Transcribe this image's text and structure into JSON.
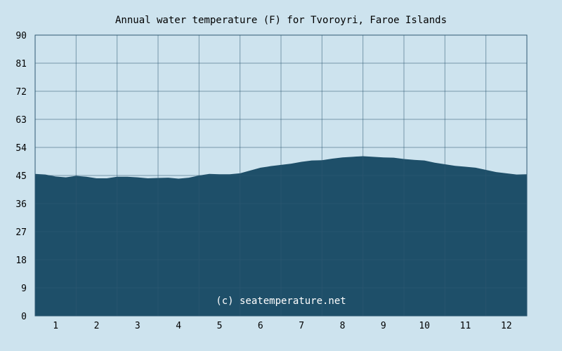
{
  "chart_data": {
    "type": "area",
    "title": "Annual water temperature (F) for Tvoroyri, Faroe Islands",
    "xlabel": "",
    "ylabel": "",
    "ylim": [
      0,
      90
    ],
    "xlim": [
      0.5,
      12.5
    ],
    "yticks": [
      "0",
      "9",
      "18",
      "27",
      "36",
      "45",
      "54",
      "63",
      "72",
      "81",
      "90"
    ],
    "xticks": [
      "1",
      "2",
      "3",
      "4",
      "5",
      "6",
      "7",
      "8",
      "9",
      "10",
      "11",
      "12"
    ],
    "x": [
      0.5,
      0.75,
      1.0,
      1.25,
      1.5,
      1.75,
      2.0,
      2.25,
      2.5,
      2.75,
      3.0,
      3.25,
      3.5,
      3.75,
      4.0,
      4.25,
      4.5,
      4.75,
      5.0,
      5.25,
      5.5,
      5.75,
      6.0,
      6.25,
      6.5,
      6.75,
      7.0,
      7.25,
      7.5,
      7.75,
      8.0,
      8.25,
      8.5,
      8.75,
      9.0,
      9.25,
      9.5,
      9.75,
      10.0,
      10.25,
      10.5,
      10.75,
      11.0,
      11.25,
      11.5,
      11.75,
      12.0,
      12.25,
      12.5
    ],
    "values": [
      45.5,
      45.3,
      44.7,
      44.4,
      44.9,
      44.6,
      44.1,
      44.1,
      44.6,
      44.6,
      44.4,
      44.1,
      44.2,
      44.3,
      44.0,
      44.3,
      45.0,
      45.5,
      45.4,
      45.4,
      45.7,
      46.6,
      47.5,
      48.0,
      48.4,
      48.8,
      49.4,
      49.8,
      49.9,
      50.4,
      50.8,
      51.0,
      51.2,
      51.0,
      50.8,
      50.7,
      50.3,
      50.0,
      49.8,
      49.1,
      48.6,
      48.1,
      47.8,
      47.5,
      46.8,
      46.1,
      45.7,
      45.3,
      45.4
    ],
    "grid": true,
    "legend": "none",
    "colors": {
      "background": "#cde3ee",
      "plot_background": "#cde3ee",
      "area_fill": "#1e4f69",
      "grid": "#2f5a73",
      "watermark_text": "#ffffff"
    }
  },
  "watermark": "(c) seatemperature.net"
}
